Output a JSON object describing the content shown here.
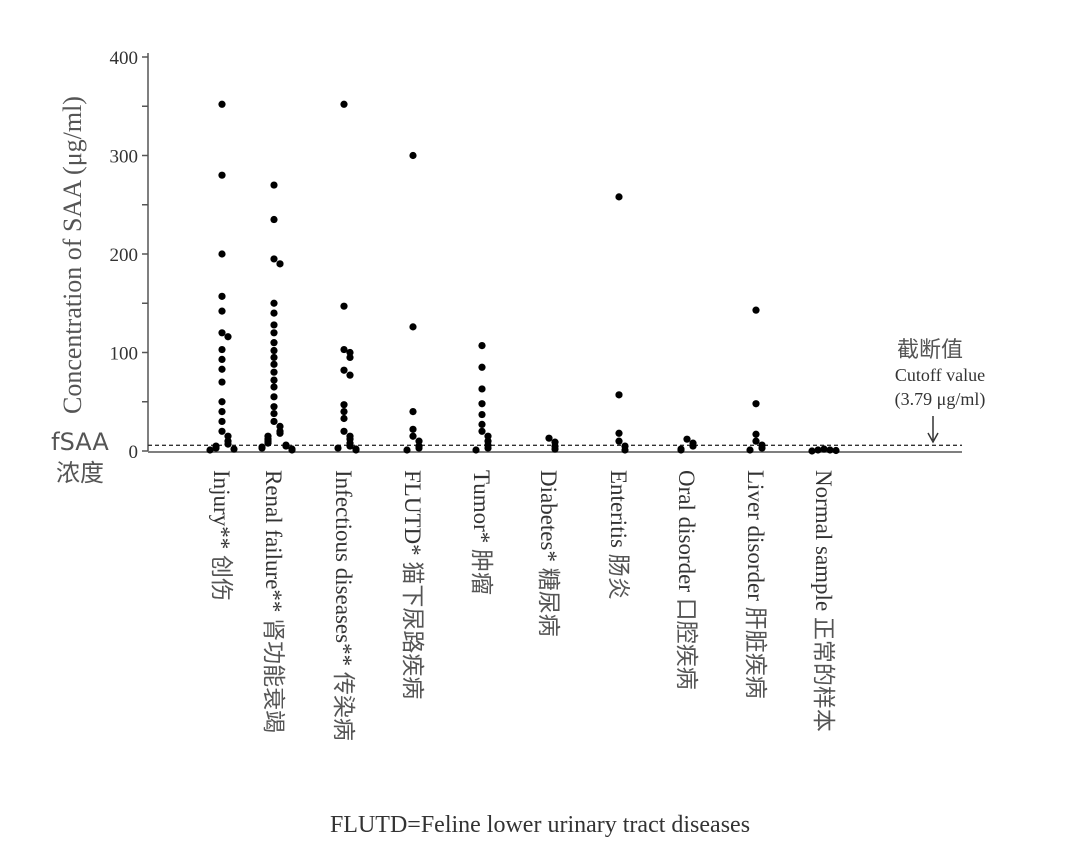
{
  "chart_data": {
    "type": "scatter",
    "ylabel": "Concentration of SAA (μg/ml)",
    "ylim": [
      0,
      400
    ],
    "yticks": [
      0,
      100,
      200,
      300,
      400
    ],
    "grid": false,
    "y_axis_side_label": [
      "fSAA",
      "浓度"
    ],
    "cutoff": {
      "value": 3.79,
      "label_cn": "截断值",
      "label_en": "Cutoff value",
      "label_value": "(3.79 μg/ml)"
    },
    "footnote": "FLUTD=Feline lower urinary tract diseases",
    "colors": {
      "points": "#000000",
      "axis": "#555555",
      "text": "#555555",
      "cutoff": "#333333"
    },
    "categories": [
      {
        "label": "Injury**",
        "label_cn": "创伤",
        "values": [
          352,
          280,
          200,
          157,
          142,
          120,
          116,
          103,
          93,
          83,
          70,
          50,
          40,
          30,
          20,
          15,
          10,
          7,
          5,
          3,
          2,
          1
        ]
      },
      {
        "label": "Renal failure**",
        "label_cn": "肾功能衰竭",
        "values": [
          270,
          235,
          195,
          190,
          150,
          140,
          128,
          120,
          110,
          102,
          95,
          88,
          80,
          72,
          65,
          55,
          45,
          38,
          30,
          25,
          20,
          18,
          15,
          12,
          10,
          8,
          6,
          5,
          4,
          3,
          2,
          1
        ]
      },
      {
        "label": "Infectious diseases**",
        "label_cn": "传染病",
        "values": [
          352,
          147,
          103,
          100,
          95,
          82,
          77,
          47,
          40,
          33,
          20,
          15,
          12,
          8,
          5,
          3,
          2,
          1
        ]
      },
      {
        "label": "FLUTD*",
        "label_cn": "猫下尿路疾病",
        "values": [
          300,
          126,
          40,
          22,
          15,
          10,
          5,
          3,
          1
        ]
      },
      {
        "label": "Tumor*",
        "label_cn": "肿瘤",
        "values": [
          107,
          85,
          63,
          48,
          37,
          27,
          20,
          15,
          10,
          6,
          3,
          1
        ]
      },
      {
        "label": "Diabetes*",
        "label_cn": "糖尿病",
        "values": [
          13,
          9,
          5,
          2
        ]
      },
      {
        "label": "Enteritis",
        "label_cn": "肠炎",
        "values": [
          258,
          57,
          18,
          10,
          5,
          1
        ]
      },
      {
        "label": "Oral disorder",
        "label_cn": "口腔疾病",
        "values": [
          12,
          8,
          5,
          2,
          1
        ]
      },
      {
        "label": "Liver disorder",
        "label_cn": "肝脏疾病",
        "values": [
          143,
          48,
          17,
          10,
          6,
          3,
          1
        ]
      },
      {
        "label": "Normal sample",
        "label_cn": "正常的样本",
        "values": [
          2,
          1,
          1,
          0.5,
          0
        ]
      }
    ]
  }
}
